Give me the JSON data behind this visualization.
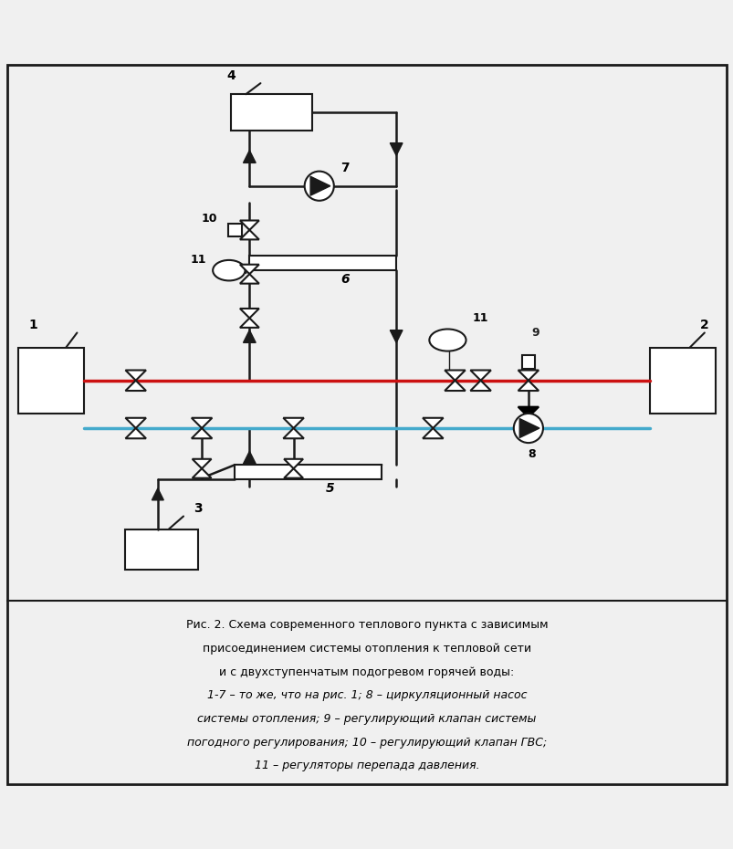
{
  "bg_color": "#f0f0f0",
  "line_color": "#1a1a1a",
  "red_color": "#cc1111",
  "blue_color": "#44aacc",
  "caption": "Рис. 2. Схема современного теплового пункта с зависимым\nприсоединением системы отопления к тепловой сети\nи с двухступенчатым подогревом горячей воды:\n1-7 – то же, что на рис. 1; 8 – циркуляционный насос\nсистемы отопления; 9 – регулирующий клапан системы\nпогодного регулирования; 10 – регулирующий клапан ГВС;\n11 – регуляторы перепада давления.",
  "figsize": [
    8.04,
    9.3
  ],
  "dpi": 100
}
